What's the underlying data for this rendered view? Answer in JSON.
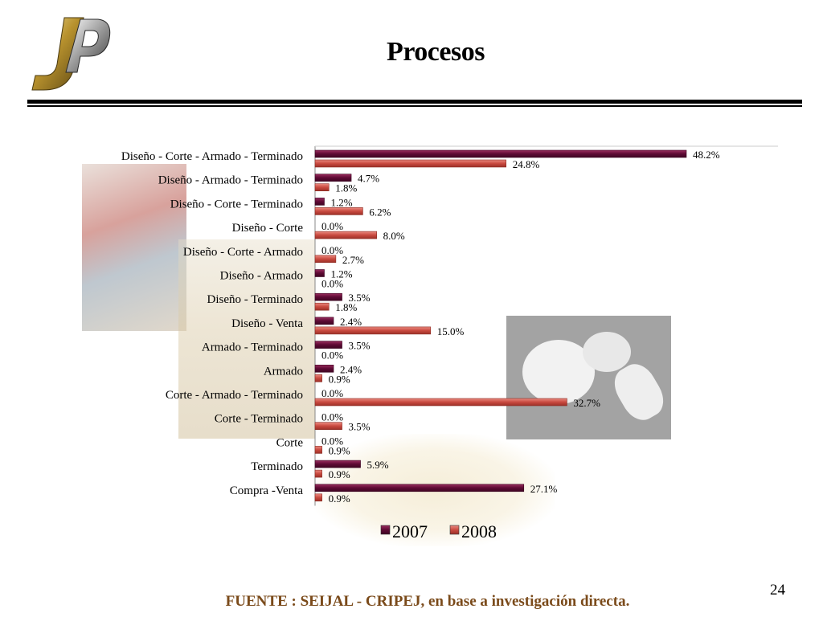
{
  "slide": {
    "title": "Procesos",
    "source": "FUENTE : SEIJAL - CRIPEJ, en base a investigación directa.",
    "page_number": "24",
    "logo_text": "JP"
  },
  "colors": {
    "series_2007": "#6b0f3d",
    "series_2008": "#d2564c",
    "source_text": "#7a4a1a"
  },
  "chart_data": {
    "type": "bar",
    "orientation": "horizontal",
    "categories": [
      "Diseño - Corte - Armado - Terminado",
      "Diseño -  Armado - Terminado",
      "Diseño -  Corte - Terminado",
      "Diseño -  Corte",
      "Diseño -  Corte  - Armado",
      "Diseño -  Armado",
      "Diseño - Terminado",
      "Diseño - Venta",
      "Armado - Terminado",
      "Armado",
      "Corte - Armado - Terminado",
      "Corte - Terminado",
      "Corte",
      "Terminado",
      "Compra -Venta"
    ],
    "series": [
      {
        "name": "2007",
        "values": [
          48.2,
          4.7,
          1.2,
          0.0,
          0.0,
          1.2,
          3.5,
          2.4,
          3.5,
          2.4,
          0.0,
          0.0,
          0.0,
          5.9,
          27.1
        ],
        "labels": [
          "48.2%",
          "4.7%",
          "1.2%",
          "0.0%",
          "0.0%",
          "1.2%",
          "3.5%",
          "2.4%",
          "3.5%",
          "2.4%",
          "0.0%",
          "0.0%",
          "0.0%",
          "5.9%",
          "27.1%"
        ]
      },
      {
        "name": "2008",
        "values": [
          24.8,
          1.8,
          6.2,
          8.0,
          2.7,
          0.0,
          1.8,
          15.0,
          0.0,
          0.9,
          32.7,
          3.5,
          0.9,
          0.9,
          0.9
        ],
        "labels": [
          "24.8%",
          "1.8%",
          "6.2%",
          "8.0%",
          "2.7%",
          "0.0%",
          "1.8%",
          "15.0%",
          "0.0%",
          "0.9%",
          "32.7%",
          "3.5%",
          "0.9%",
          "0.9%",
          "0.9%"
        ]
      }
    ],
    "xlim": [
      0,
      60
    ],
    "grid": false,
    "legend": "bottom"
  }
}
